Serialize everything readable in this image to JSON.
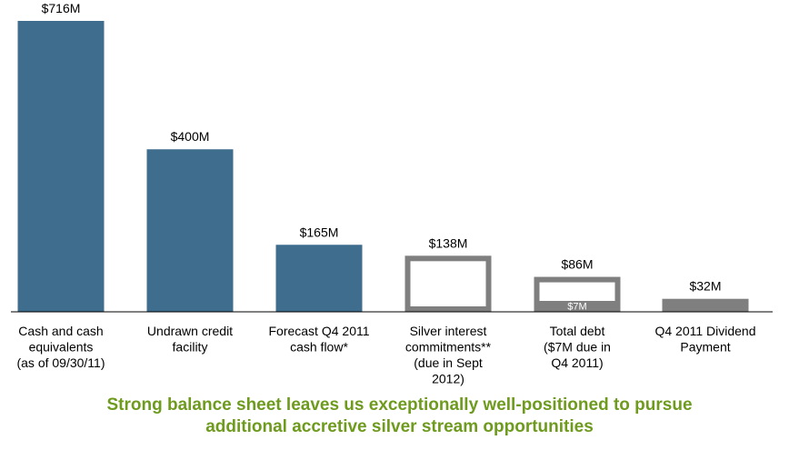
{
  "chart_data": {
    "type": "bar",
    "title": "",
    "xlabel": "",
    "ylabel": "",
    "ylim": [
      0,
      716
    ],
    "grid": false,
    "legend": "none",
    "categories": [
      [
        "Cash and cash",
        "equivalents",
        "(as of 09/30/11)"
      ],
      [
        "Undrawn credit",
        "facility"
      ],
      [
        "Forecast Q4 2011",
        "cash flow*"
      ],
      [
        "Silver interest",
        "commitments**",
        "(due in Sept",
        "2012)"
      ],
      [
        "Total debt",
        "($7M due in",
        "Q4 2011)"
      ],
      [
        "Q4 2011 Dividend",
        "Payment"
      ]
    ],
    "values": [
      716,
      400,
      165,
      138,
      86,
      32
    ],
    "value_labels": [
      "$716M",
      "$400M",
      "$165M",
      "$138M",
      "$86M",
      "$32M"
    ],
    "bar_styles": [
      "filled",
      "filled",
      "filled",
      "outline",
      "outline",
      "filled"
    ],
    "inner_segment": {
      "bar_index": 4,
      "value": 7,
      "label": "$7M"
    }
  },
  "colors": {
    "bar_fill": "#3e6d8e",
    "outline_bar": "#7f7f7f",
    "dividend_bar": "#7f7f7f",
    "axis": "#000000",
    "inner_label": "#ffffff",
    "footer_text": "#6e9a1e"
  },
  "footer": {
    "line1": "Strong balance sheet leaves us exceptionally well-positioned to pursue",
    "line2": "additional accretive silver stream opportunities"
  }
}
